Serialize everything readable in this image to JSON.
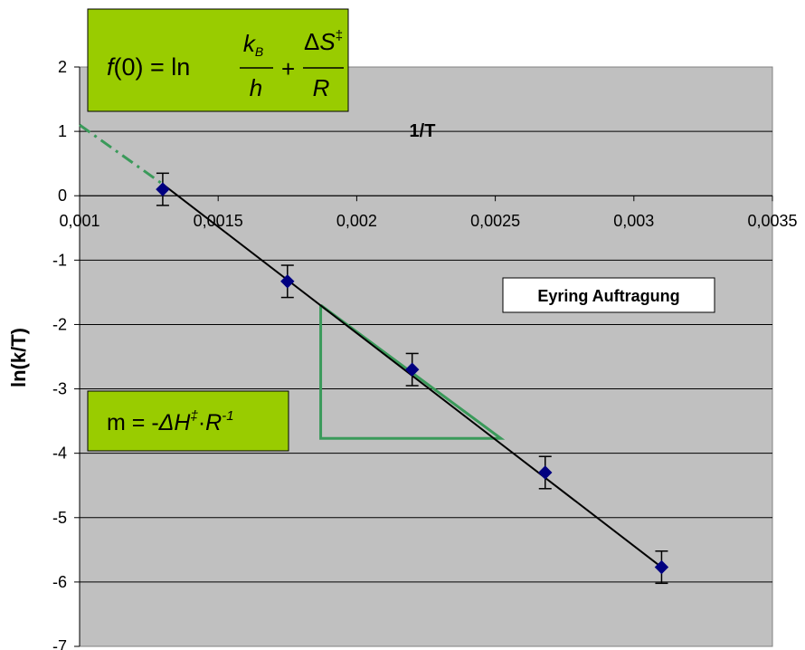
{
  "chart_data": {
    "type": "scatter",
    "title": "Eyring Auftragung",
    "xlabel": "1/T",
    "ylabel": "ln(k/T)",
    "xlim": [
      0.001,
      0.0035
    ],
    "ylim": [
      -7,
      2
    ],
    "x_ticks": [
      "0,001",
      "0,0015",
      "0,002",
      "0,0025",
      "0,003",
      "0,0035"
    ],
    "y_ticks": [
      "2",
      "1",
      "0",
      "-1",
      "-2",
      "-3",
      "-4",
      "-5",
      "-6",
      "-7"
    ],
    "grid": "horizontal",
    "points": [
      {
        "x": 0.0013,
        "y": 0.1,
        "error": 0.25
      },
      {
        "x": 0.00175,
        "y": -1.33,
        "error": 0.25
      },
      {
        "x": 0.0022,
        "y": -2.7,
        "error": 0.25
      },
      {
        "x": 0.00268,
        "y": -4.3,
        "error": 0.25
      },
      {
        "x": 0.0031,
        "y": -5.77,
        "error": 0.25
      }
    ],
    "fit_line": {
      "x": [
        0.0013,
        0.0031
      ],
      "y": [
        0.18,
        -5.77
      ]
    },
    "extrapolation": {
      "x": [
        0.001,
        0.0013
      ],
      "y": [
        1.1,
        0.18
      ]
    },
    "slope_triangle": {
      "x1": 0.00187,
      "x2": 0.00252,
      "y_top": -1.7,
      "y_bottom": -3.77
    },
    "annotations": {
      "intercept_formula": {
        "lhs": "f(0) = ln",
        "frac1_num": "k",
        "frac1_num_sub": "B",
        "frac1_den": "h",
        "plus": "+",
        "frac2_num": "ΔS",
        "frac2_num_sup": "‡",
        "frac2_den": "R"
      },
      "slope_formula": {
        "text1": "m = -",
        "dh": "ΔH",
        "dh_sup": "‡",
        "dot": "·",
        "r": "R",
        "r_sup": "-1"
      }
    },
    "colors": {
      "plot_background": "#c0c0c0",
      "marker": "#000080",
      "fit_line": "#000000",
      "triangle": "#3a9a5a",
      "extrapolation": "#3a9a5a",
      "formula_box": "#99cc00"
    }
  }
}
